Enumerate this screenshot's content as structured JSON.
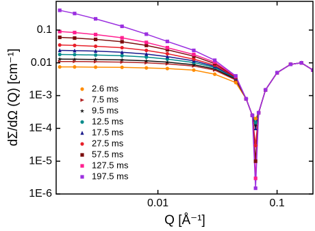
{
  "chart_data": {
    "type": "scatter",
    "x_label": "Q [Å⁻¹]",
    "y_label": "dΣ/dΩ (Q) [cm⁻¹]",
    "xscale": "log",
    "yscale": "log",
    "xlim": [
      0.0014,
      0.2
    ],
    "ylim": [
      1e-06,
      0.75
    ],
    "xticks": [
      0.01,
      0.1
    ],
    "yticks": [
      {
        "value": 1e-06,
        "label": "1E-6"
      },
      {
        "value": 1e-05,
        "label": "1E-5"
      },
      {
        "value": 0.0001,
        "label": "1E-4"
      },
      {
        "value": 0.001,
        "label": "1E-3"
      },
      0.01,
      0.1
    ],
    "legend": "lower left",
    "x": [
      0.0015,
      0.002,
      0.003,
      0.005,
      0.008,
      0.012,
      0.02,
      0.03,
      0.045,
      0.055,
      0.062,
      0.066,
      0.07,
      0.08,
      0.1,
      0.13,
      0.16,
      0.2
    ],
    "series": [
      {
        "name": "2.6 ms",
        "color": "#ff8c00",
        "marker": "circle",
        "values": [
          0.0075,
          0.0075,
          0.0074,
          0.0073,
          0.007,
          0.0067,
          0.006,
          0.0045,
          0.0025,
          0.0008,
          0.00025,
          0.0002,
          0.0003,
          0.0015,
          0.005,
          0.009,
          0.01,
          0.006
        ]
      },
      {
        "name": "7.5 ms",
        "color": "#b22222",
        "marker": "triangle-right",
        "values": [
          0.011,
          0.011,
          0.0108,
          0.0105,
          0.01,
          0.0093,
          0.008,
          0.006,
          0.003,
          0.0008,
          0.00025,
          0.00015,
          0.0003,
          0.0015,
          0.005,
          0.009,
          0.01,
          0.006
        ]
      },
      {
        "name": "9.5 ms",
        "color": "#111111",
        "marker": "star",
        "values": [
          0.013,
          0.0129,
          0.0127,
          0.0123,
          0.0115,
          0.0105,
          0.0088,
          0.0065,
          0.0032,
          0.0008,
          0.00025,
          0.00012,
          0.0003,
          0.0015,
          0.005,
          0.009,
          0.01,
          0.006
        ]
      },
      {
        "name": "12.5 ms",
        "color": "#008b8b",
        "marker": "circle",
        "values": [
          0.018,
          0.0178,
          0.0173,
          0.0165,
          0.015,
          0.013,
          0.0102,
          0.0072,
          0.0034,
          0.0008,
          0.00025,
          0.00015,
          0.0003,
          0.0015,
          0.005,
          0.009,
          0.01,
          0.006
        ]
      },
      {
        "name": "17.5 ms",
        "color": "#1a1a8c",
        "marker": "triangle-up",
        "values": [
          0.024,
          0.0236,
          0.0228,
          0.021,
          0.0185,
          0.0155,
          0.0115,
          0.0078,
          0.0035,
          0.0008,
          0.00025,
          0.0001,
          0.0003,
          0.0015,
          0.005,
          0.009,
          0.01,
          0.006
        ]
      },
      {
        "name": "27.5 ms",
        "color": "#e8202a",
        "marker": "circle",
        "values": [
          0.035,
          0.034,
          0.032,
          0.029,
          0.024,
          0.019,
          0.013,
          0.0085,
          0.0036,
          0.0008,
          0.00025,
          3e-05,
          0.0003,
          0.0015,
          0.005,
          0.009,
          0.01,
          0.006
        ]
      },
      {
        "name": "57.5 ms",
        "color": "#7b0c0c",
        "marker": "square",
        "values": [
          0.06,
          0.057,
          0.052,
          0.044,
          0.034,
          0.025,
          0.016,
          0.0095,
          0.0037,
          0.0008,
          0.00025,
          1e-05,
          0.0003,
          0.0015,
          0.005,
          0.009,
          0.01,
          0.006
        ]
      },
      {
        "name": "127.5 ms",
        "color": "#ff1f8f",
        "marker": "square",
        "values": [
          0.09,
          0.084,
          0.073,
          0.058,
          0.042,
          0.029,
          0.018,
          0.0105,
          0.0038,
          0.0008,
          0.00025,
          3e-06,
          0.0003,
          0.0015,
          0.005,
          0.009,
          0.01,
          0.006
        ]
      },
      {
        "name": "197.5 ms",
        "color": "#9b30e0",
        "marker": "square",
        "values": [
          0.4,
          0.32,
          0.22,
          0.13,
          0.075,
          0.045,
          0.024,
          0.012,
          0.004,
          0.0008,
          0.00025,
          1.5e-06,
          0.0003,
          0.0015,
          0.005,
          0.009,
          0.01,
          0.006
        ]
      }
    ]
  }
}
